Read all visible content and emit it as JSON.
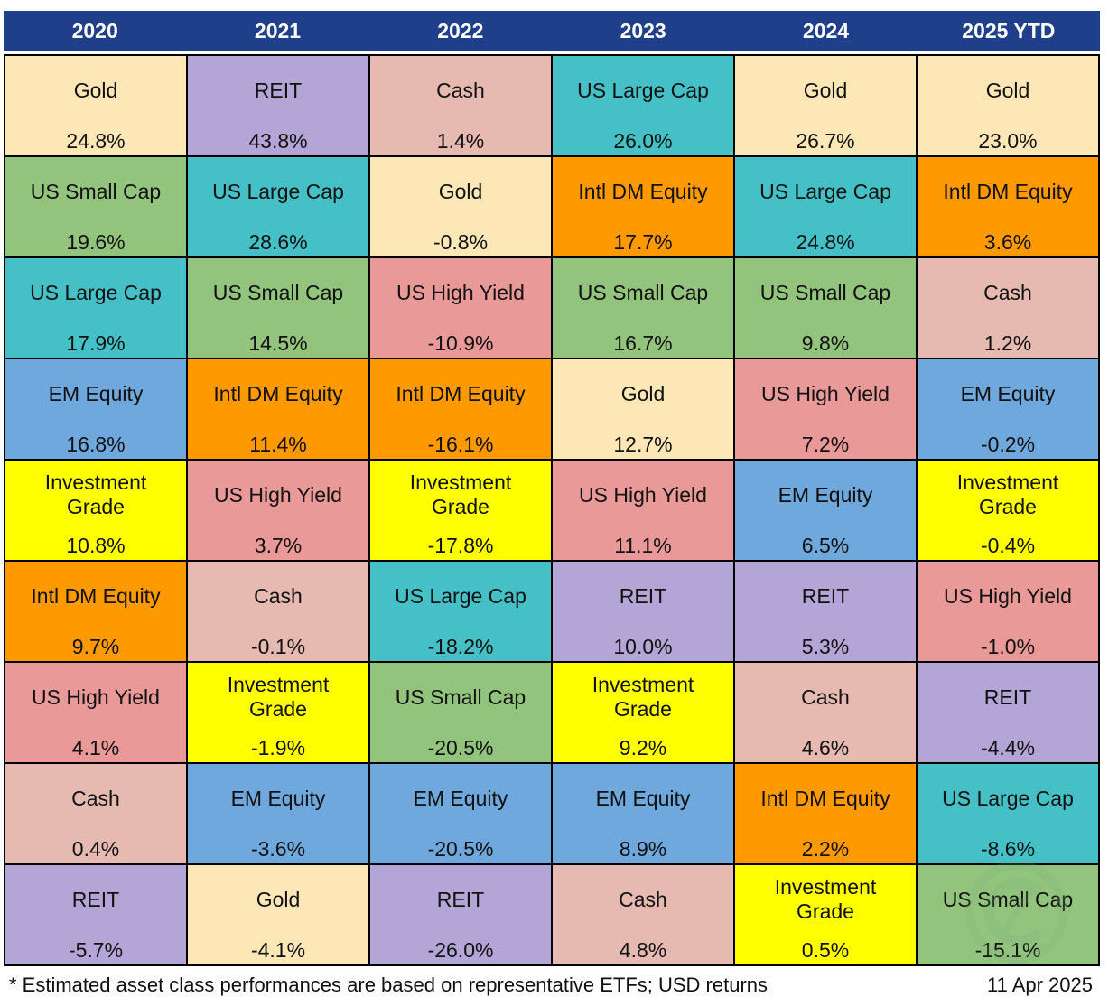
{
  "chart_data": {
    "type": "table",
    "columns": [
      "2020",
      "2021",
      "2022",
      "2023",
      "2024",
      "2025 YTD"
    ],
    "asset_colors": {
      "Gold": "#fde7b6",
      "REIT": "#b3a6d6",
      "Cash": "#e6b9b1",
      "US Large Cap": "#44c0c6",
      "US Small Cap": "#93c47d",
      "Intl DM Equity": "#ff9900",
      "US High Yield": "#ea9999",
      "EM Equity": "#6fa8dc",
      "Investment Grade": "#ffff00"
    },
    "ranked_returns": [
      [
        {
          "asset": "Gold",
          "ret": "24.8%"
        },
        {
          "asset": "US Small Cap",
          "ret": "19.6%"
        },
        {
          "asset": "US Large Cap",
          "ret": "17.9%"
        },
        {
          "asset": "EM Equity",
          "ret": "16.8%"
        },
        {
          "asset": "Investment Grade",
          "ret": "10.8%"
        },
        {
          "asset": "Intl DM Equity",
          "ret": "9.7%"
        },
        {
          "asset": "US High Yield",
          "ret": "4.1%"
        },
        {
          "asset": "Cash",
          "ret": "0.4%"
        },
        {
          "asset": "REIT",
          "ret": "-5.7%"
        }
      ],
      [
        {
          "asset": "REIT",
          "ret": "43.8%"
        },
        {
          "asset": "US Large Cap",
          "ret": "28.6%"
        },
        {
          "asset": "US Small Cap",
          "ret": "14.5%"
        },
        {
          "asset": "Intl DM Equity",
          "ret": "11.4%"
        },
        {
          "asset": "US High Yield",
          "ret": "3.7%"
        },
        {
          "asset": "Cash",
          "ret": "-0.1%"
        },
        {
          "asset": "Investment Grade",
          "ret": "-1.9%"
        },
        {
          "asset": "EM Equity",
          "ret": "-3.6%"
        },
        {
          "asset": "Gold",
          "ret": "-4.1%"
        }
      ],
      [
        {
          "asset": "Cash",
          "ret": "1.4%"
        },
        {
          "asset": "Gold",
          "ret": "-0.8%"
        },
        {
          "asset": "US High Yield",
          "ret": "-10.9%"
        },
        {
          "asset": "Intl DM Equity",
          "ret": "-16.1%"
        },
        {
          "asset": "Investment Grade",
          "ret": "-17.8%"
        },
        {
          "asset": "US Large Cap",
          "ret": "-18.2%"
        },
        {
          "asset": "US Small Cap",
          "ret": "-20.5%"
        },
        {
          "asset": "EM Equity",
          "ret": "-20.5%"
        },
        {
          "asset": "REIT",
          "ret": "-26.0%"
        }
      ],
      [
        {
          "asset": "US Large Cap",
          "ret": "26.0%"
        },
        {
          "asset": "Intl DM Equity",
          "ret": "17.7%"
        },
        {
          "asset": "US Small Cap",
          "ret": "16.7%"
        },
        {
          "asset": "Gold",
          "ret": "12.7%"
        },
        {
          "asset": "US High Yield",
          "ret": "11.1%"
        },
        {
          "asset": "REIT",
          "ret": "10.0%"
        },
        {
          "asset": "Investment Grade",
          "ret": "9.2%"
        },
        {
          "asset": "EM Equity",
          "ret": "8.9%"
        },
        {
          "asset": "Cash",
          "ret": "4.8%"
        }
      ],
      [
        {
          "asset": "Gold",
          "ret": "26.7%"
        },
        {
          "asset": "US Large Cap",
          "ret": "24.8%"
        },
        {
          "asset": "US Small Cap",
          "ret": "9.8%"
        },
        {
          "asset": "US High Yield",
          "ret": "7.2%"
        },
        {
          "asset": "EM Equity",
          "ret": "6.5%"
        },
        {
          "asset": "REIT",
          "ret": "5.3%"
        },
        {
          "asset": "Cash",
          "ret": "4.6%"
        },
        {
          "asset": "Intl DM Equity",
          "ret": "2.2%"
        },
        {
          "asset": "Investment Grade",
          "ret": "0.5%"
        }
      ],
      [
        {
          "asset": "Gold",
          "ret": "23.0%"
        },
        {
          "asset": "Intl DM Equity",
          "ret": "3.6%"
        },
        {
          "asset": "Cash",
          "ret": "1.2%"
        },
        {
          "asset": "EM Equity",
          "ret": "-0.2%"
        },
        {
          "asset": "Investment Grade",
          "ret": "-0.4%"
        },
        {
          "asset": "US High Yield",
          "ret": "-1.0%"
        },
        {
          "asset": "REIT",
          "ret": "-4.4%"
        },
        {
          "asset": "US Large Cap",
          "ret": "-8.6%"
        },
        {
          "asset": "US Small Cap",
          "ret": "-15.1%"
        }
      ]
    ]
  },
  "footnote": "* Estimated asset class performances are based on representative ETFs; USD returns",
  "date": "11 Apr 2025",
  "header_color": "#1f3f8a",
  "watermark_icon": "logo-watermark-icon"
}
